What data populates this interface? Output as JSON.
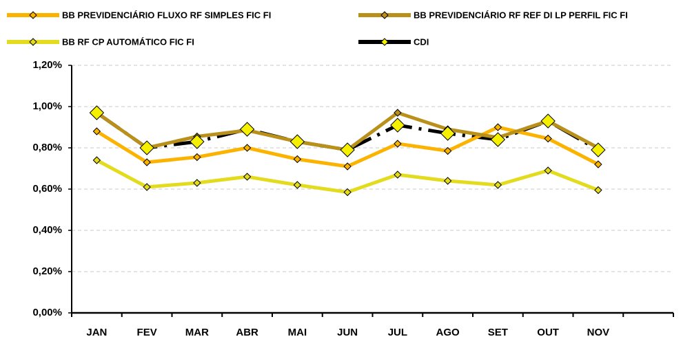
{
  "chart_data": {
    "type": "line",
    "categories": [
      "JAN",
      "FEV",
      "MAR",
      "ABR",
      "MAI",
      "JUN",
      "JUL",
      "AGO",
      "SET",
      "OUT",
      "NOV",
      null
    ],
    "series": [
      {
        "name": "BB PREVIDENCIÁRIO FLUXO RF SIMPLES FIC FI",
        "color": "#fbb300",
        "values": [
          0.88,
          0.73,
          0.755,
          0.8,
          0.745,
          0.71,
          0.82,
          0.785,
          0.9,
          0.845,
          0.72,
          null
        ]
      },
      {
        "name": "BB PREVIDENCIÁRIO RF REF DI LP PERFIL FIC FI",
        "color": "#b8901a",
        "values": [
          0.97,
          0.8,
          0.855,
          0.885,
          0.83,
          0.79,
          0.97,
          0.89,
          0.85,
          0.93,
          0.8,
          null
        ]
      },
      {
        "name": "BB RF CP AUTOMÁTICO FIC FI",
        "color": "#e3dc1e",
        "values": [
          0.74,
          0.61,
          0.63,
          0.66,
          0.62,
          0.585,
          0.67,
          0.64,
          0.62,
          0.69,
          0.595,
          null
        ]
      },
      {
        "name": "CDI",
        "color": "#000000",
        "marker_color": "#f5f000",
        "values": [
          0.97,
          0.8,
          0.83,
          0.89,
          0.83,
          0.79,
          0.91,
          0.87,
          0.84,
          0.93,
          0.79,
          null
        ]
      }
    ],
    "ylim": [
      0,
      1.2
    ],
    "yticks": [
      {
        "value": 0,
        "label": "0,00%"
      },
      {
        "value": 0.2,
        "label": "0,20%"
      },
      {
        "value": 0.4,
        "label": "0,40%"
      },
      {
        "value": 0.6,
        "label": "0,60%"
      },
      {
        "value": 0.8,
        "label": "0,80%"
      },
      {
        "value": 1.0,
        "label": "1,00%"
      },
      {
        "value": 1.2,
        "label": "1,20%"
      }
    ],
    "grid": true,
    "legend": "top"
  }
}
